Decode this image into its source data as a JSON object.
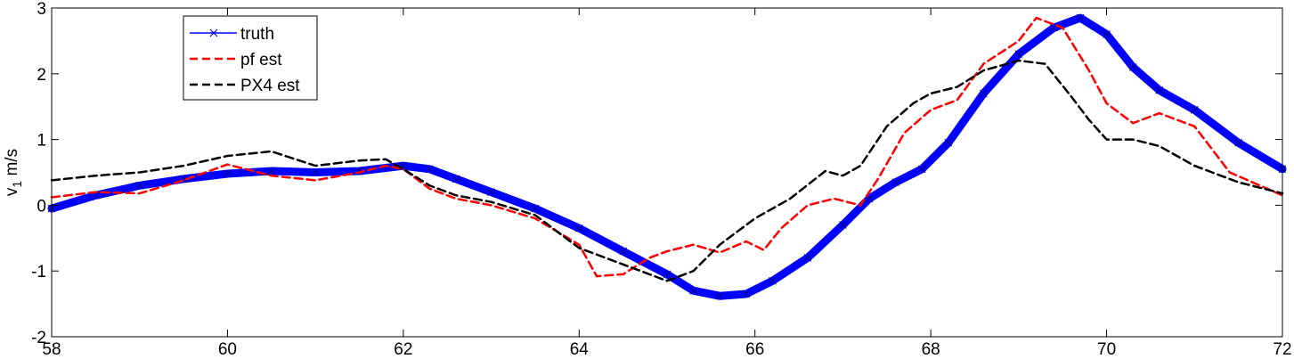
{
  "chart_data": {
    "type": "line",
    "title": "",
    "xlabel": "",
    "ylabel": "v",
    "ylabel_sub": "1",
    "ylabel_unit": " m/s",
    "xlim": [
      58,
      72
    ],
    "ylim": [
      -2,
      3
    ],
    "xticks": [
      58,
      60,
      62,
      64,
      66,
      68,
      70,
      72
    ],
    "yticks": [
      -2,
      -1,
      0,
      1,
      2,
      3
    ],
    "grid": false,
    "legend": "top-left",
    "series": [
      {
        "name": "truth",
        "color": "#0000ff",
        "style": "solid-x-markers",
        "x": [
          58.0,
          58.5,
          59.0,
          59.5,
          60.0,
          60.5,
          61.0,
          61.5,
          62.0,
          62.3,
          62.6,
          63.0,
          63.5,
          64.0,
          64.5,
          65.0,
          65.3,
          65.6,
          65.9,
          66.2,
          66.6,
          67.0,
          67.3,
          67.6,
          67.9,
          68.2,
          68.6,
          69.0,
          69.4,
          69.7,
          70.0,
          70.3,
          70.6,
          71.0,
          71.5,
          72.0
        ],
        "y": [
          -0.05,
          0.15,
          0.3,
          0.4,
          0.48,
          0.52,
          0.5,
          0.52,
          0.6,
          0.55,
          0.4,
          0.2,
          -0.05,
          -0.35,
          -0.7,
          -1.05,
          -1.3,
          -1.38,
          -1.35,
          -1.15,
          -0.8,
          -0.3,
          0.1,
          0.35,
          0.55,
          0.95,
          1.7,
          2.3,
          2.7,
          2.85,
          2.6,
          2.1,
          1.75,
          1.45,
          0.95,
          0.55
        ]
      },
      {
        "name": "pf est",
        "color": "#ff0000",
        "style": "dashed",
        "x": [
          58.0,
          58.5,
          59.0,
          59.5,
          60.0,
          60.5,
          61.0,
          61.5,
          61.8,
          62.0,
          62.3,
          62.6,
          63.0,
          63.5,
          64.0,
          64.2,
          64.5,
          64.8,
          65.0,
          65.3,
          65.6,
          65.9,
          66.1,
          66.3,
          66.6,
          66.9,
          67.2,
          67.4,
          67.7,
          68.0,
          68.3,
          68.6,
          69.0,
          69.2,
          69.5,
          69.8,
          70.0,
          70.3,
          70.6,
          71.0,
          71.4,
          72.0
        ],
        "y": [
          0.12,
          0.2,
          0.18,
          0.38,
          0.62,
          0.45,
          0.38,
          0.5,
          0.6,
          0.55,
          0.25,
          0.1,
          0.0,
          -0.2,
          -0.6,
          -1.08,
          -1.05,
          -0.8,
          -0.7,
          -0.6,
          -0.72,
          -0.55,
          -0.68,
          -0.35,
          0.0,
          0.1,
          0.0,
          0.4,
          1.1,
          1.45,
          1.6,
          2.15,
          2.5,
          2.85,
          2.7,
          2.05,
          1.55,
          1.25,
          1.4,
          1.2,
          0.5,
          0.15
        ]
      },
      {
        "name": "PX4 est",
        "color": "#000000",
        "style": "dashed",
        "x": [
          58.0,
          58.5,
          59.0,
          59.5,
          60.0,
          60.5,
          61.0,
          61.5,
          61.8,
          62.0,
          62.3,
          62.6,
          63.0,
          63.5,
          64.0,
          64.5,
          65.0,
          65.3,
          65.6,
          66.0,
          66.4,
          66.8,
          67.0,
          67.2,
          67.5,
          67.8,
          68.0,
          68.3,
          68.6,
          69.0,
          69.3,
          69.6,
          69.8,
          70.0,
          70.3,
          70.6,
          71.0,
          71.5,
          72.0
        ],
        "y": [
          0.38,
          0.45,
          0.5,
          0.6,
          0.75,
          0.82,
          0.6,
          0.68,
          0.7,
          0.55,
          0.3,
          0.15,
          0.05,
          -0.15,
          -0.65,
          -0.9,
          -1.15,
          -1.0,
          -0.6,
          -0.2,
          0.1,
          0.52,
          0.45,
          0.6,
          1.2,
          1.55,
          1.7,
          1.8,
          2.05,
          2.2,
          2.15,
          1.65,
          1.3,
          1.0,
          1.0,
          0.9,
          0.6,
          0.35,
          0.18
        ]
      }
    ]
  }
}
